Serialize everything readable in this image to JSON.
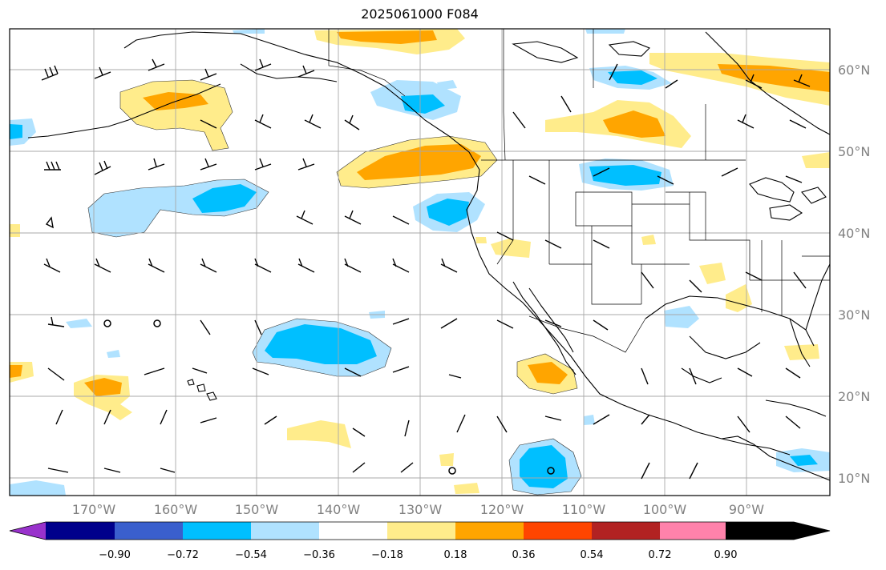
{
  "title": "2025061000 F084",
  "map": {
    "lon_labels": [
      "170°W",
      "160°W",
      "150°W",
      "140°W",
      "130°W",
      "120°W",
      "110°W",
      "100°W",
      "90°W"
    ],
    "lat_labels": [
      "60°N",
      "50°N",
      "40°N",
      "30°N",
      "20°N",
      "10°N"
    ],
    "projection": "plate-carree",
    "grid": true
  },
  "colorbar": {
    "tick_labels": [
      "−0.90",
      "−0.72",
      "−0.54",
      "−0.36",
      "−0.18",
      "0.18",
      "0.36",
      "0.54",
      "0.72",
      "0.90"
    ],
    "colors": [
      "#9932CC",
      "#00008B",
      "#3A5FCD",
      "#00BFFF",
      "#B0E2FF",
      "#FFFFFF",
      "#FFEC8B",
      "#FFA500",
      "#FF4500",
      "#B22222",
      "#FF82AB"
    ],
    "extend": "both"
  },
  "colors": {
    "land_outline": "#000000",
    "gridline": "#a8a8a8",
    "axis_label": "#808080"
  }
}
